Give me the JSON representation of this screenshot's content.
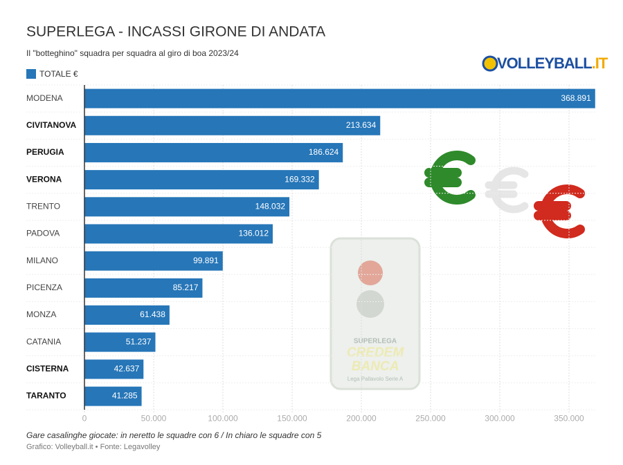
{
  "chart_data": {
    "type": "barh",
    "title": "SUPERLEGA - INCASSI GIRONE DI ANDATA",
    "subtitle": "Il \"botteghino\" squadra per squadra al giro di boa 2023/24",
    "logo": {
      "text": "VOLLEYBALL",
      "suffix": ".IT"
    },
    "categories": [
      "MODENA",
      "CIVITANOVA",
      "PERUGIA",
      "VERONA",
      "TRENTO",
      "PADOVA",
      "MILANO",
      "PICENZA",
      "MONZA",
      "CATANIA",
      "CISTERNA",
      "TARANTO"
    ],
    "label_bold": [
      false,
      true,
      true,
      true,
      false,
      false,
      false,
      false,
      false,
      false,
      true,
      true
    ],
    "series": [
      {
        "name": "TOTALE €",
        "color": "#2676b8",
        "values": [
          368891,
          213634,
          186624,
          169332,
          148032,
          136012,
          99891,
          85217,
          61438,
          51237,
          42637,
          41285
        ],
        "value_labels": [
          "368.891",
          "213.634",
          "186.624",
          "169.332",
          "148.032",
          "136.012",
          "99.891",
          "85.217",
          "61.438",
          "51.237",
          "42.637",
          "41.285"
        ]
      }
    ],
    "xlim": [
      0,
      370000
    ],
    "xticks": [
      0,
      {
        "value": 50000,
        "label": "50.000"
      },
      {
        "value": 100000,
        "label": "100.000"
      },
      {
        "value": 150000,
        "label": "150.000"
      },
      {
        "value": 200000,
        "label": "200.000"
      },
      {
        "value": 250000,
        "label": "250.000"
      },
      {
        "value": 300000,
        "label": "300.000"
      },
      {
        "value": 350000,
        "label": "350.000"
      }
    ],
    "grid": true,
    "watermark": {
      "line1": "SUPERLEGA",
      "line2": "CREDEM",
      "line3": "BANCA",
      "line4": "Lega Pallavolo Serie A"
    },
    "note": "Gare casalinghe giocate: in neretto le squadre con 6 / In chiaro le squadre con 5",
    "source": "Grafico: Volleyball.it • Fonte: Legavolley"
  }
}
